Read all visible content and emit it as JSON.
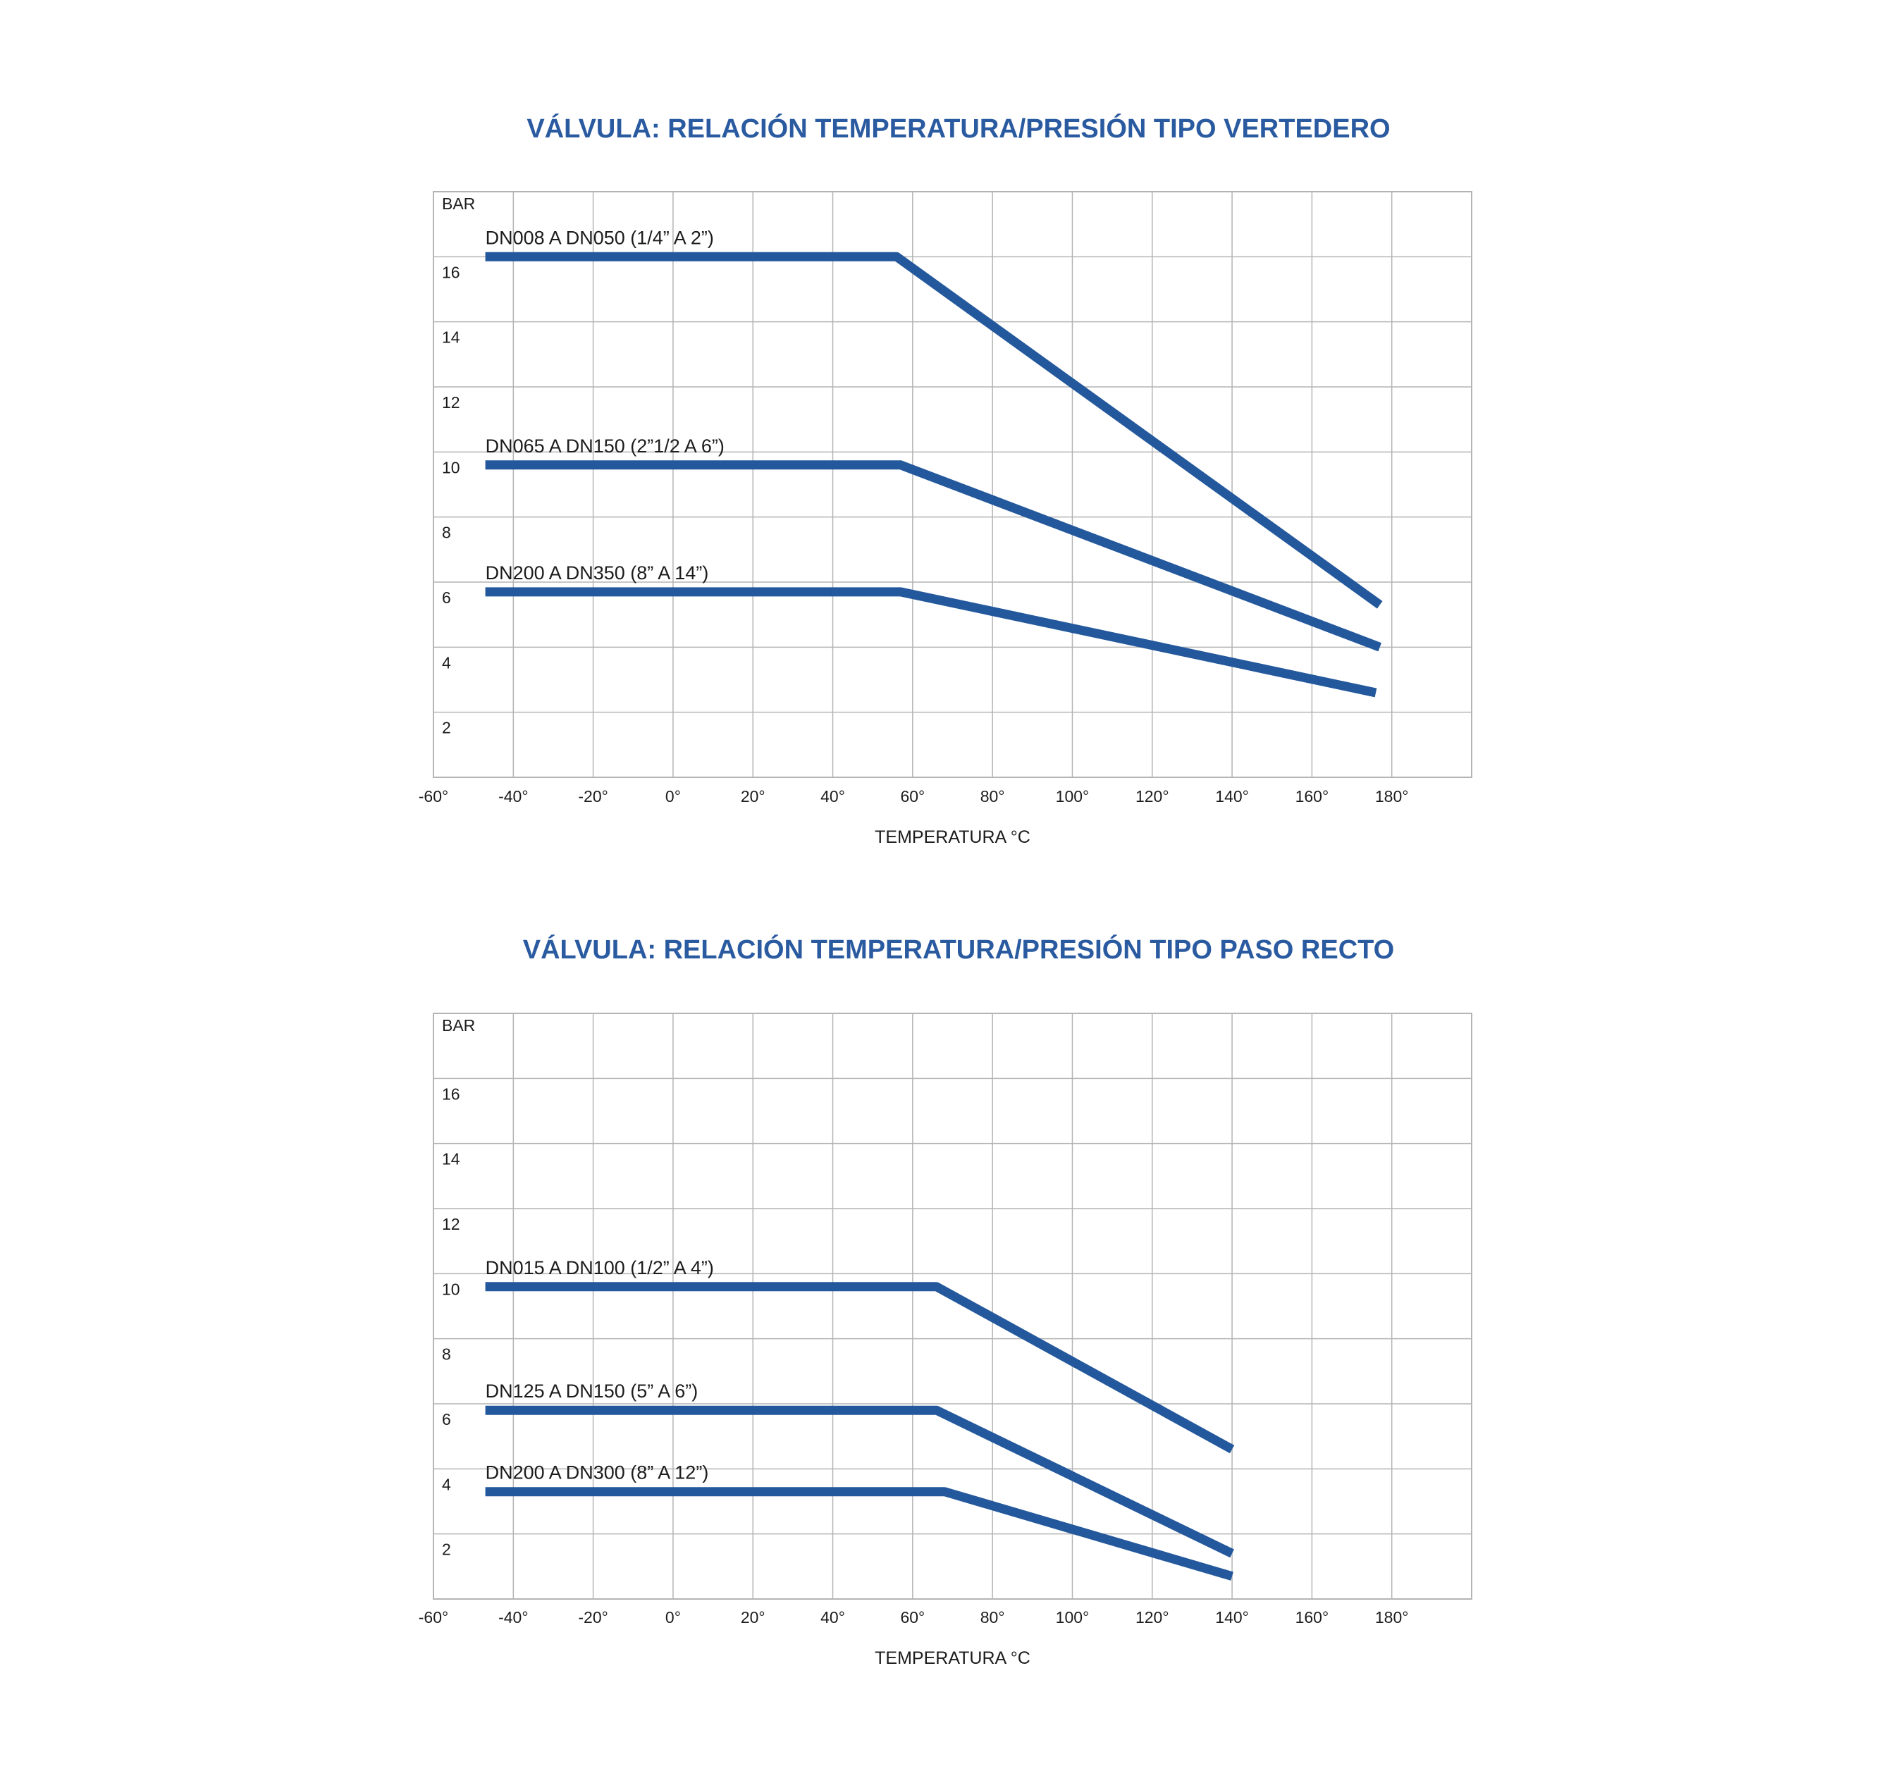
{
  "colors": {
    "title": "#2a5aa0",
    "series": "#24589c",
    "grid": "#b4b4b4",
    "text": "#1c1c1c",
    "background": "#ffffff"
  },
  "chart_data": [
    {
      "type": "line",
      "title": "VÁLVULA: RELACIÓN TEMPERATURA/PRESIÓN TIPO VERTEDERO",
      "xlabel": "TEMPERATURA °C",
      "ylabel": "BAR",
      "xlim": [
        -60,
        200
      ],
      "ylim": [
        0,
        18
      ],
      "x_ticks": [
        -60,
        -40,
        -20,
        0,
        20,
        40,
        60,
        80,
        100,
        120,
        140,
        160,
        180
      ],
      "x_tick_labels": [
        "-60°",
        "-40°",
        "-20°",
        "0°",
        "20°",
        "40°",
        "60°",
        "80°",
        "100°",
        "120°",
        "140°",
        "160°",
        "180°"
      ],
      "y_ticks": [
        2,
        4,
        6,
        8,
        10,
        12,
        14,
        16
      ],
      "y_tick_labels": [
        "2",
        "4",
        "6",
        "8",
        "10",
        "12",
        "14",
        "16"
      ],
      "grid": true,
      "series": [
        {
          "name": "DN008 A DN050 (1/4” A 2”)",
          "x": [
            -47,
            56,
            177
          ],
          "y": [
            16,
            16,
            5.3
          ]
        },
        {
          "name": "DN065 A DN150 (2”1/2 A 6”)",
          "x": [
            -47,
            57,
            177
          ],
          "y": [
            9.6,
            9.6,
            4
          ]
        },
        {
          "name": "DN200 A DN350 (8” A 14”)",
          "x": [
            -47,
            57,
            176
          ],
          "y": [
            5.7,
            5.7,
            2.6
          ]
        }
      ]
    },
    {
      "type": "line",
      "title": "VÁLVULA: RELACIÓN TEMPERATURA/PRESIÓN TIPO PASO RECTO",
      "xlabel": "TEMPERATURA °C",
      "ylabel": "BAR",
      "xlim": [
        -60,
        200
      ],
      "ylim": [
        0,
        18
      ],
      "x_ticks": [
        -60,
        -40,
        -20,
        0,
        20,
        40,
        60,
        80,
        100,
        120,
        140,
        160,
        180
      ],
      "x_tick_labels": [
        "-60°",
        "-40°",
        "-20°",
        "0°",
        "20°",
        "40°",
        "60°",
        "80°",
        "100°",
        "120°",
        "140°",
        "160°",
        "180°"
      ],
      "y_ticks": [
        2,
        4,
        6,
        8,
        10,
        12,
        14,
        16
      ],
      "y_tick_labels": [
        "2",
        "4",
        "6",
        "8",
        "10",
        "12",
        "14",
        "16"
      ],
      "grid": true,
      "series": [
        {
          "name": "DN015 A DN100 (1/2” A 4”)",
          "x": [
            -47,
            66,
            140
          ],
          "y": [
            9.6,
            9.6,
            4.6
          ]
        },
        {
          "name": "DN125 A DN150 (5” A 6”)",
          "x": [
            -47,
            66,
            140
          ],
          "y": [
            5.8,
            5.8,
            1.4
          ]
        },
        {
          "name": "DN200 A DN300 (8” A 12”)",
          "x": [
            -47,
            68,
            140
          ],
          "y": [
            3.3,
            3.3,
            0.7
          ]
        }
      ]
    }
  ]
}
